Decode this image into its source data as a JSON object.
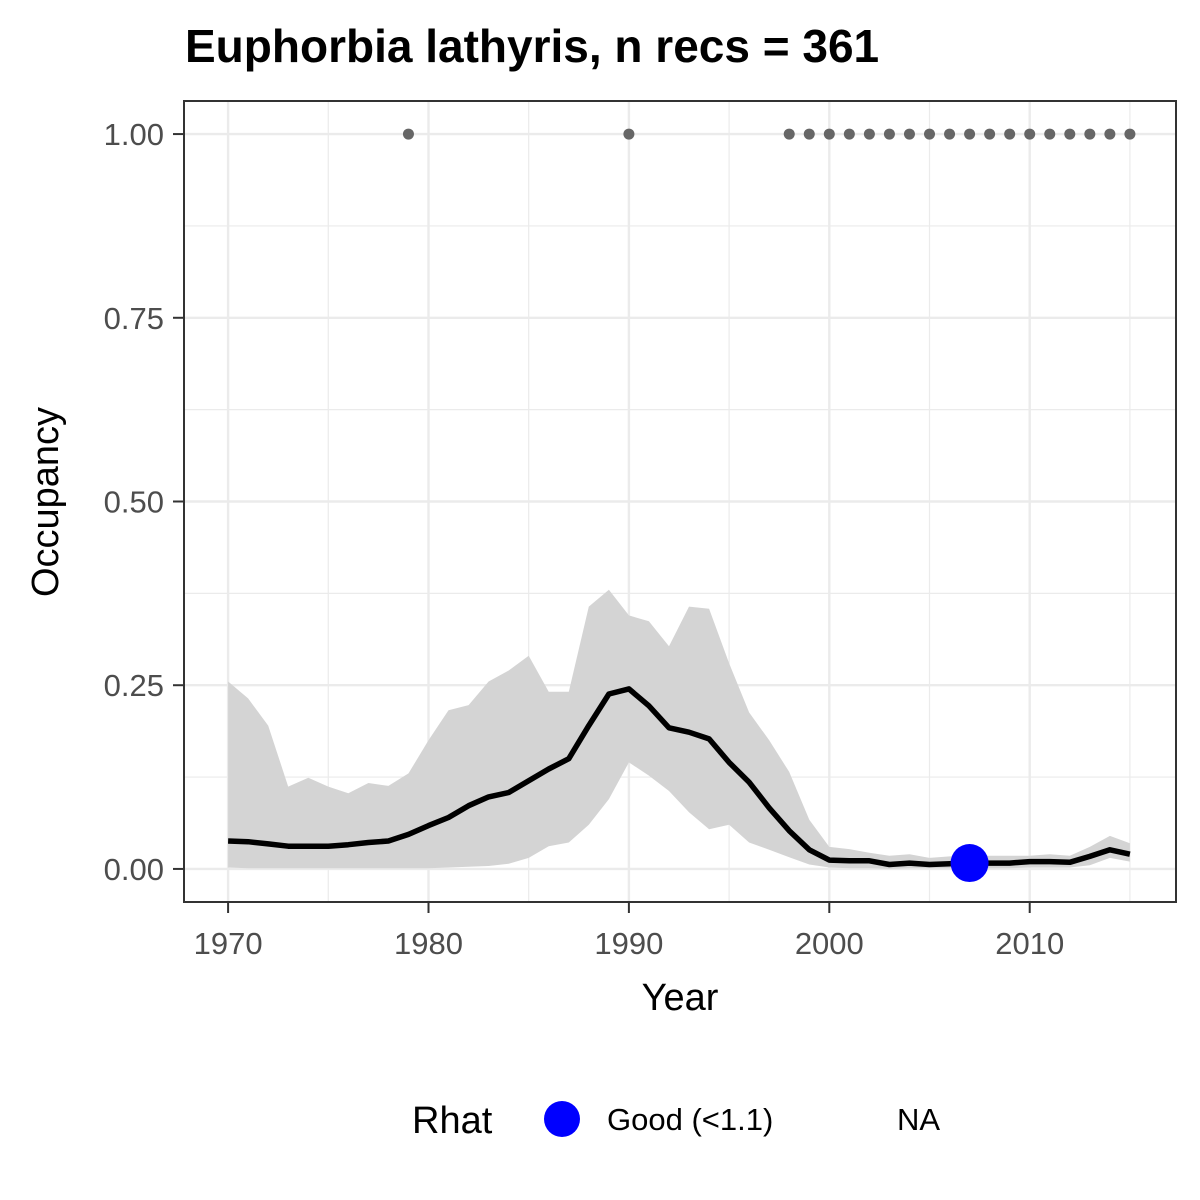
{
  "chart_data": {
    "type": "line",
    "title": "Euphorbia lathyris, n recs = 361",
    "xlabel": "Year",
    "ylabel": "Occupancy",
    "xlim": [
      1967.8,
      2017.3
    ],
    "ylim": [
      -0.045,
      1.045
    ],
    "x_ticks": [
      1970,
      1980,
      1990,
      2000,
      2010
    ],
    "x_tick_labels": [
      "1970",
      "1980",
      "1990",
      "2000",
      "2010"
    ],
    "y_ticks": [
      0,
      0.25,
      0.5,
      0.75,
      1.0
    ],
    "y_tick_labels": [
      "0.00",
      "0.25",
      "0.50",
      "0.75",
      "1.00"
    ],
    "grid": true,
    "years": [
      1970,
      1971,
      1972,
      1973,
      1974,
      1975,
      1976,
      1977,
      1978,
      1979,
      1980,
      1981,
      1982,
      1983,
      1984,
      1985,
      1986,
      1987,
      1988,
      1989,
      1990,
      1991,
      1992,
      1993,
      1994,
      1995,
      1996,
      1997,
      1998,
      1999,
      2000,
      2001,
      2002,
      2003,
      2004,
      2005,
      2006,
      2007,
      2008,
      2009,
      2010,
      2011,
      2012,
      2013,
      2014,
      2015
    ],
    "occupancy_mean": [
      0.038,
      0.037,
      0.034,
      0.031,
      0.031,
      0.031,
      0.033,
      0.036,
      0.038,
      0.047,
      0.059,
      0.07,
      0.086,
      0.098,
      0.104,
      0.12,
      0.136,
      0.15,
      0.195,
      0.238,
      0.245,
      0.222,
      0.192,
      0.186,
      0.177,
      0.145,
      0.118,
      0.083,
      0.052,
      0.026,
      0.012,
      0.011,
      0.011,
      0.006,
      0.008,
      0.006,
      0.007,
      0.008,
      0.008,
      0.008,
      0.01,
      0.01,
      0.009,
      0.017,
      0.026,
      0.02
    ],
    "ci_upper": [
      0.255,
      0.232,
      0.195,
      0.112,
      0.124,
      0.112,
      0.103,
      0.117,
      0.113,
      0.13,
      0.175,
      0.216,
      0.223,
      0.255,
      0.27,
      0.29,
      0.241,
      0.241,
      0.357,
      0.38,
      0.345,
      0.337,
      0.303,
      0.357,
      0.354,
      0.28,
      0.213,
      0.175,
      0.132,
      0.067,
      0.03,
      0.027,
      0.022,
      0.018,
      0.02,
      0.015,
      0.017,
      0.017,
      0.018,
      0.018,
      0.018,
      0.02,
      0.018,
      0.03,
      0.045,
      0.035
    ],
    "ci_lower": [
      0.002,
      0.001,
      0.001,
      0.001,
      0.001,
      0.001,
      0.001,
      0.001,
      0.001,
      0.001,
      0.001,
      0.002,
      0.003,
      0.004,
      0.007,
      0.015,
      0.031,
      0.036,
      0.06,
      0.095,
      0.145,
      0.127,
      0.106,
      0.077,
      0.054,
      0.06,
      0.036,
      0.026,
      0.016,
      0.006,
      0.002,
      0.001,
      0.001,
      0.0,
      0.001,
      0.001,
      0.001,
      0.001,
      0.001,
      0.001,
      0.002,
      0.002,
      0.002,
      0.005,
      0.015,
      0.01
    ],
    "detections": {
      "years": [
        1979,
        1990,
        1998,
        1999,
        2000,
        2001,
        2002,
        2003,
        2004,
        2005,
        2006,
        2007,
        2008,
        2009,
        2010,
        2011,
        2012,
        2013,
        2014,
        2015
      ],
      "value": 1.0
    },
    "rhat_points": [
      {
        "year": 2007,
        "value": 0.008,
        "category": "Good (<1.1)"
      }
    ],
    "legend": {
      "title": "Rhat",
      "position": "bottom",
      "items": [
        {
          "label": "Good (<1.1)",
          "color": "#0000ff"
        },
        {
          "label": "NA",
          "color": ""
        }
      ]
    },
    "colors": {
      "line": "#000000",
      "ribbon": "#d4d4d4",
      "detection_points": "#666666",
      "rhat_good": "#0000ff",
      "grid": "#ebebeb",
      "panel_border": "#333333"
    }
  }
}
